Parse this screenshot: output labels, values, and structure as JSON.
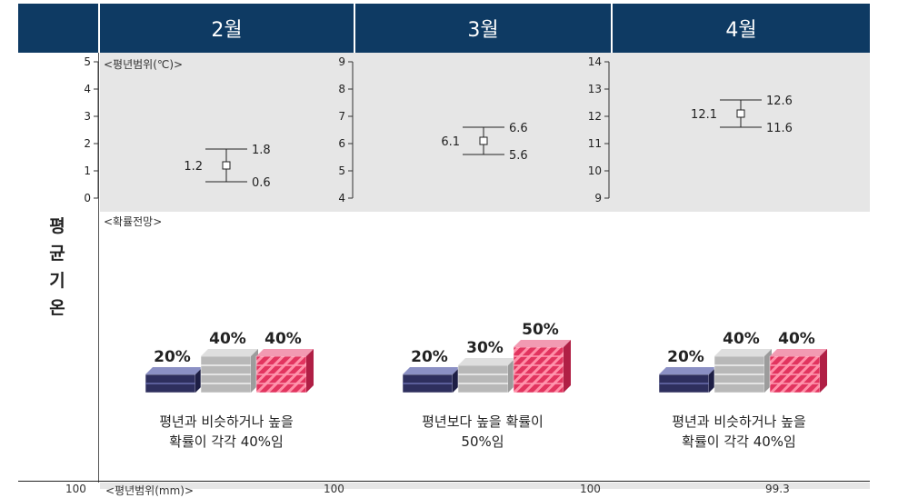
{
  "side_label_chars": [
    "평",
    "균",
    "기",
    "온"
  ],
  "range_section_label": "<평년범위(℃)>",
  "prob_section_label": "<확률전망>",
  "months": [
    {
      "header": "2월",
      "range": {
        "ticks": [
          "0",
          "1",
          "2",
          "3",
          "4",
          "5"
        ],
        "ymin": 0,
        "ymax": 5,
        "mean": 1.2,
        "low": 0.6,
        "high": 1.8,
        "mean_label": "1.2",
        "low_label": "0.6",
        "high_label": "1.8"
      },
      "prob": {
        "below": 20,
        "similar": 40,
        "above": 40,
        "labels": [
          "20%",
          "40%",
          "40%"
        ]
      },
      "desc": [
        "평년과 비슷하거나 높을",
        "확률이 각각 40%임"
      ]
    },
    {
      "header": "3월",
      "range": {
        "ticks": [
          "4",
          "5",
          "6",
          "7",
          "8",
          "9"
        ],
        "ymin": 4,
        "ymax": 9,
        "mean": 6.1,
        "low": 5.6,
        "high": 6.6,
        "mean_label": "6.1",
        "low_label": "5.6",
        "high_label": "6.6"
      },
      "prob": {
        "below": 20,
        "similar": 30,
        "above": 50,
        "labels": [
          "20%",
          "30%",
          "50%"
        ]
      },
      "desc": [
        "평년보다 높을 확률이",
        "50%임"
      ]
    },
    {
      "header": "4월",
      "range": {
        "ticks": [
          "9",
          "10",
          "11",
          "12",
          "13",
          "14"
        ],
        "ymin": 9,
        "ymax": 14,
        "mean": 12.1,
        "low": 11.6,
        "high": 12.6,
        "mean_label": "12.1",
        "low_label": "11.6",
        "high_label": "12.6"
      },
      "prob": {
        "below": 20,
        "similar": 40,
        "above": 40,
        "labels": [
          "20%",
          "40%",
          "40%"
        ]
      },
      "desc": [
        "평년과 비슷하거나 높을",
        "확률이 각각 40%임"
      ]
    }
  ],
  "cut_off_labels": [
    "100",
    "<평년범위(mm)>",
    "100",
    "100",
    "99.3"
  ],
  "colors": {
    "header_bg": "#0e3a63",
    "below": "#2e2f5e",
    "similar": "#b8b8b8",
    "above": "#e2345f",
    "panel_bg": "#e6e6e6"
  },
  "chart_data": [
    {
      "type": "errorbar",
      "title": "2월",
      "ylabel": "평년범위(℃)",
      "ylim": [
        0,
        5
      ],
      "values": {
        "mean": 1.2,
        "low": 0.6,
        "high": 1.8
      }
    },
    {
      "type": "errorbar",
      "title": "3월",
      "ylabel": "평년범위(℃)",
      "ylim": [
        4,
        9
      ],
      "values": {
        "mean": 6.1,
        "low": 5.6,
        "high": 6.6
      }
    },
    {
      "type": "errorbar",
      "title": "4월",
      "ylabel": "평년범위(℃)",
      "ylim": [
        9,
        14
      ],
      "values": {
        "mean": 12.1,
        "low": 11.6,
        "high": 12.6
      }
    },
    {
      "type": "bar",
      "title": "확률전망",
      "categories": [
        "2월",
        "3월",
        "4월"
      ],
      "series": [
        {
          "values": [
            20,
            20,
            20
          ]
        },
        {
          "values": [
            40,
            30,
            40
          ]
        },
        {
          "values": [
            40,
            50,
            40
          ]
        }
      ]
    }
  ]
}
